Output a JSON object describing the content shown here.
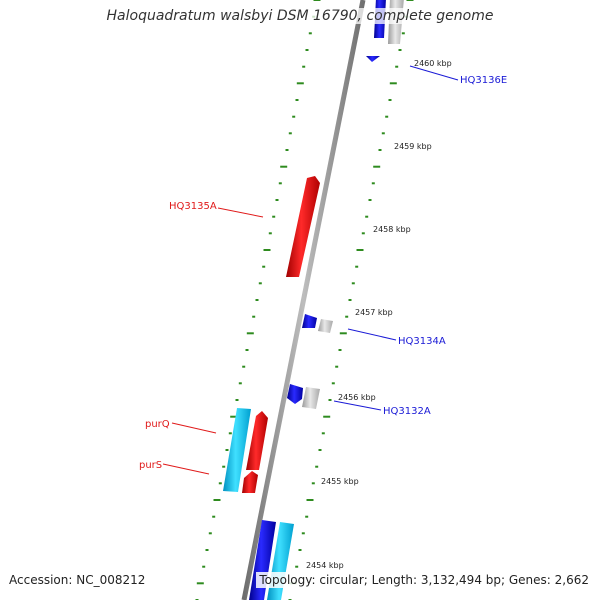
{
  "title": "Haloquadratum walsbyi DSM 16790, complete genome",
  "footer": {
    "accession": "Accession: NC_008212",
    "topology": "Topology: circular; Length: 3,132,494 bp; Genes: 2,662"
  },
  "scale_ticks": [
    "2460 kbp",
    "2459 kbp",
    "2458 kbp",
    "2457 kbp",
    "2456 kbp",
    "2455 kbp",
    "2454 kbp"
  ],
  "gene_labels": [
    "HQ3136E",
    "HQ3135A",
    "HQ3134A",
    "HQ3132A",
    "purQ",
    "purS"
  ],
  "colors": {
    "backbone": "#8f8f8f",
    "scale_dots": "#2e8b1e",
    "forward_gene": "#1a1ad6",
    "reverse_gene": "#e01a1a",
    "cds_blue": "#0a0ae0",
    "rna_red": "#e81010",
    "cyan_gene": "#18c8f0",
    "grey_gene": "#c8c8c8"
  }
}
